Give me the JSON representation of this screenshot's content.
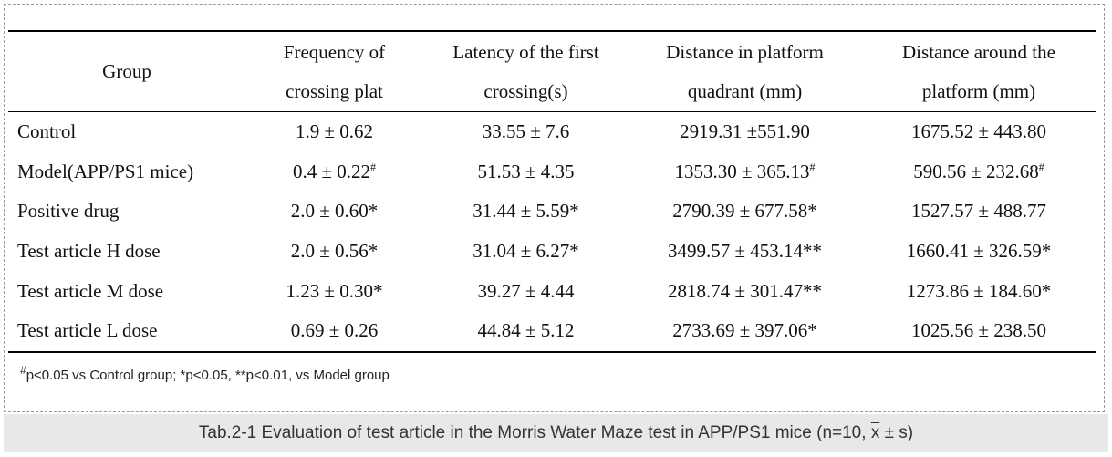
{
  "table": {
    "headers": [
      {
        "line1": "Group",
        "line2": ""
      },
      {
        "line1": "Frequency of",
        "line2": "crossing plat"
      },
      {
        "line1": "Latency of the first",
        "line2": "crossing(s)"
      },
      {
        "line1": "Distance in platform",
        "line2": "quadrant (mm)"
      },
      {
        "line1": "Distance around the",
        "line2": "platform (mm)"
      }
    ],
    "rows": [
      {
        "group": "Control",
        "freq": "1.9 ± 0.62",
        "freq_sup": "",
        "latency": "33.55 ± 7.6",
        "quadrant": "2919.31 ±551.90",
        "quadrant_sup": "",
        "around": "1675.52 ± 443.80",
        "around_sup": ""
      },
      {
        "group": "Model(APP/PS1 mice)",
        "freq": "0.4 ± 0.22",
        "freq_sup": "#",
        "latency": "51.53 ± 4.35",
        "quadrant": "1353.30 ± 365.13",
        "quadrant_sup": "#",
        "around": "590.56 ± 232.68",
        "around_sup": "#"
      },
      {
        "group": "Positive drug",
        "freq": "2.0 ± 0.60*",
        "freq_sup": "",
        "latency": "31.44 ± 5.59*",
        "quadrant": "2790.39 ± 677.58*",
        "quadrant_sup": "",
        "around": "1527.57 ± 488.77",
        "around_sup": ""
      },
      {
        "group": "Test article H dose",
        "freq": "2.0 ± 0.56*",
        "freq_sup": "",
        "latency": "31.04 ± 6.27*",
        "quadrant": "3499.57 ± 453.14**",
        "quadrant_sup": "",
        "around": "1660.41 ± 326.59*",
        "around_sup": ""
      },
      {
        "group": "Test article M dose",
        "freq": "1.23 ± 0.30*",
        "freq_sup": "",
        "latency": "39.27 ± 4.44",
        "quadrant": "2818.74 ± 301.47**",
        "quadrant_sup": "",
        "around": "1273.86 ± 184.60*",
        "around_sup": ""
      },
      {
        "group": "Test article L dose",
        "freq": "0.69 ± 0.26",
        "freq_sup": "",
        "latency": "44.84 ± 5.12",
        "quadrant": "2733.69 ± 397.06*",
        "quadrant_sup": "",
        "around": "1025.56 ± 238.50",
        "around_sup": ""
      }
    ]
  },
  "note": {
    "sup": "#",
    "text": "p<0.05 vs Control group; *p<0.05, **p<0.01, vs Model group"
  },
  "caption": {
    "prefix": "Tab.2-1 Evaluation of test article in the Morris Water Maze test in APP/PS1 mice (n=10, ",
    "mean_symbol": "x",
    "suffix": " ± s)"
  }
}
